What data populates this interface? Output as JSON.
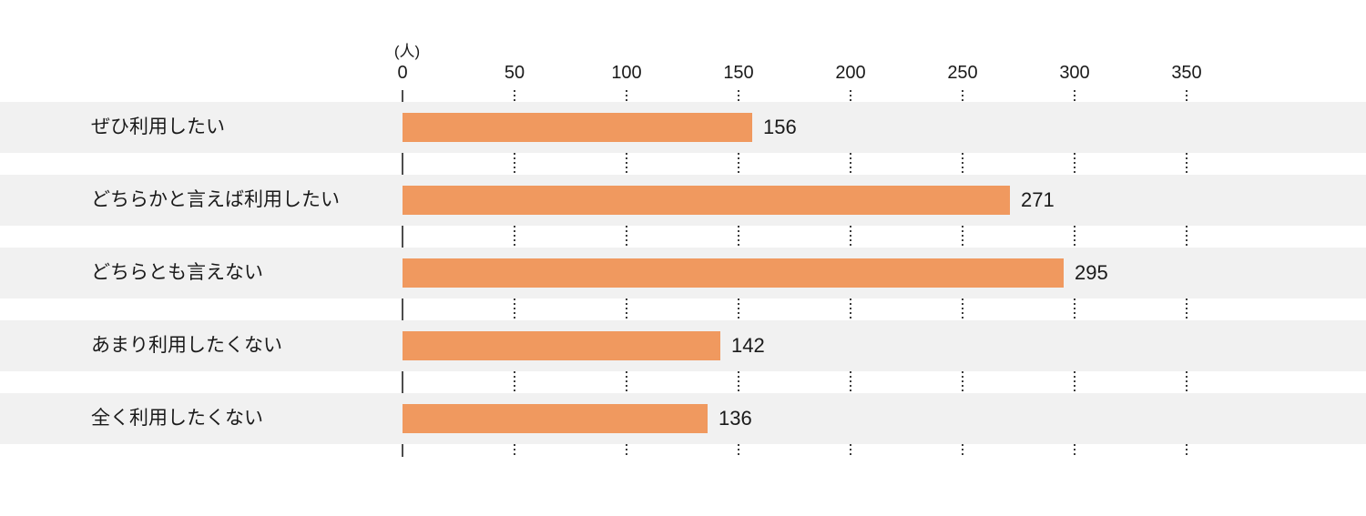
{
  "chart_data": {
    "type": "bar",
    "orientation": "horizontal",
    "title": "",
    "unit_label": "(人)",
    "categories": [
      "ぜひ利用したい",
      "どちらかと言えば利用したい",
      "どちらとも言えない",
      "あまり利用したくない",
      "全く利用したくない"
    ],
    "values": [
      156,
      271,
      295,
      142,
      136
    ],
    "data_labels": [
      "156",
      "271",
      "295",
      "142",
      "136"
    ],
    "ticks": [
      0,
      50,
      100,
      150,
      200,
      250,
      300,
      350
    ],
    "tick_labels": [
      "0",
      "50",
      "100",
      "150",
      "200",
      "250",
      "300",
      "350"
    ],
    "xlabel": "",
    "ylabel": "",
    "xlim": [
      0,
      430
    ],
    "grid": "dotted vertical tick marks in gaps between row bands",
    "legend": "none"
  },
  "colors": {
    "bar": "#f0995f",
    "row_background": "#f1f1f1",
    "page_background": "#ffffff",
    "axis_line": "#4d4d4d",
    "grid_dots": "#3c3c3c",
    "text": "#1a1a1a"
  }
}
